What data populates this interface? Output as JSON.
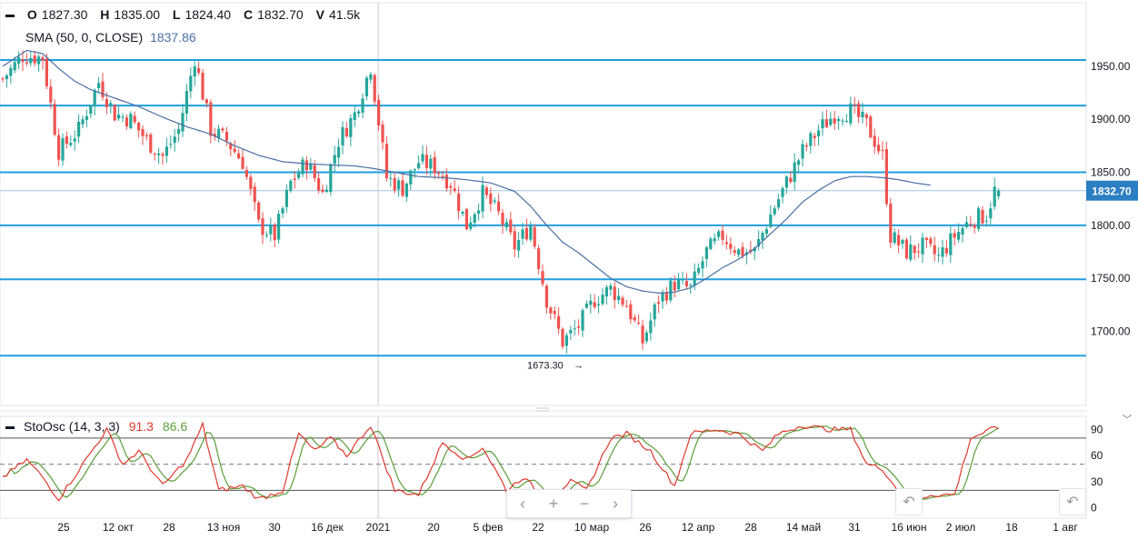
{
  "legend": {
    "o_label": "O",
    "o_value": "1827.30",
    "h_label": "H",
    "h_value": "1835.00",
    "l_label": "L",
    "l_value": "1824.40",
    "c_label": "C",
    "c_value": "1832.70",
    "v_label": "V",
    "v_value": "41.5k",
    "sma_label": "SMA (50, 0, CLOSE)",
    "sma_value": "1837.86",
    "osc_label": "StoOsc (14, 3, 3)",
    "osc_k": "91.3",
    "osc_d": "86.6"
  },
  "colors": {
    "up": "#26a69a",
    "down": "#ef5350",
    "sma": "#4a6fa5",
    "hline": "#1e9fe0",
    "price_badge": "#2b7ec1",
    "k_line": "#e0392d",
    "d_line": "#5a9e3a"
  },
  "nav_buttons": [
    {
      "name": "scroll-left-button",
      "glyph": "‹"
    },
    {
      "name": "zoom-in-button",
      "glyph": "+"
    },
    {
      "name": "zoom-out-button",
      "glyph": "−"
    },
    {
      "name": "scroll-right-button",
      "glyph": "›"
    }
  ],
  "chart_data": [
    {
      "type": "candlestick",
      "title": "",
      "x_ticks": [
        "25",
        "12 окт",
        "28",
        "13 ноя",
        "30",
        "16 дек",
        "2021",
        "20",
        "5 фев",
        "22",
        "10 мар",
        "26",
        "12 апр",
        "28",
        "14 май",
        "31",
        "16 июн",
        "2 июл",
        "18",
        "1 авг"
      ],
      "y_ticks": [
        "1700.00",
        "1750.00",
        "1800.00",
        "1850.00",
        "1900.00",
        "1950.00"
      ],
      "ylim": [
        1630,
        2010
      ],
      "current_price": 1832.7,
      "horizontal_levels": [
        1677,
        1749,
        1800,
        1850,
        1913,
        1956
      ],
      "min_annotation": {
        "value": 1673.3,
        "label": "1673.30"
      },
      "sma_series": [
        {
          "i": 0,
          "v": 1950
        },
        {
          "i": 6,
          "v": 1965
        },
        {
          "i": 10,
          "v": 1962
        },
        {
          "i": 14,
          "v": 1948
        },
        {
          "i": 18,
          "v": 1936
        },
        {
          "i": 22,
          "v": 1928
        },
        {
          "i": 28,
          "v": 1920
        },
        {
          "i": 34,
          "v": 1912
        },
        {
          "i": 40,
          "v": 1902
        },
        {
          "i": 46,
          "v": 1893
        },
        {
          "i": 52,
          "v": 1886
        },
        {
          "i": 58,
          "v": 1875
        },
        {
          "i": 64,
          "v": 1866
        },
        {
          "i": 70,
          "v": 1860
        },
        {
          "i": 76,
          "v": 1858
        },
        {
          "i": 82,
          "v": 1857
        },
        {
          "i": 88,
          "v": 1856
        },
        {
          "i": 92,
          "v": 1854
        },
        {
          "i": 98,
          "v": 1850
        },
        {
          "i": 104,
          "v": 1846
        },
        {
          "i": 110,
          "v": 1845
        },
        {
          "i": 116,
          "v": 1843
        },
        {
          "i": 122,
          "v": 1840
        },
        {
          "i": 128,
          "v": 1832
        },
        {
          "i": 132,
          "v": 1818
        },
        {
          "i": 136,
          "v": 1800
        },
        {
          "i": 140,
          "v": 1784
        },
        {
          "i": 144,
          "v": 1774
        },
        {
          "i": 148,
          "v": 1762
        },
        {
          "i": 152,
          "v": 1750
        },
        {
          "i": 156,
          "v": 1742
        },
        {
          "i": 160,
          "v": 1738
        },
        {
          "i": 164,
          "v": 1736
        },
        {
          "i": 168,
          "v": 1737
        },
        {
          "i": 172,
          "v": 1741
        },
        {
          "i": 176,
          "v": 1750
        },
        {
          "i": 180,
          "v": 1760
        },
        {
          "i": 184,
          "v": 1768
        },
        {
          "i": 188,
          "v": 1778
        },
        {
          "i": 192,
          "v": 1792
        },
        {
          "i": 196,
          "v": 1806
        },
        {
          "i": 200,
          "v": 1822
        },
        {
          "i": 204,
          "v": 1833
        },
        {
          "i": 208,
          "v": 1842
        },
        {
          "i": 212,
          "v": 1846
        },
        {
          "i": 216,
          "v": 1846
        },
        {
          "i": 220,
          "v": 1845
        },
        {
          "i": 224,
          "v": 1843
        },
        {
          "i": 228,
          "v": 1840
        },
        {
          "i": 232,
          "v": 1837.86
        }
      ],
      "price_anchors": [
        {
          "i": 0,
          "v": 1938
        },
        {
          "i": 5,
          "v": 1960
        },
        {
          "i": 10,
          "v": 1958
        },
        {
          "i": 14,
          "v": 1870
        },
        {
          "i": 19,
          "v": 1890
        },
        {
          "i": 24,
          "v": 1935
        },
        {
          "i": 28,
          "v": 1905
        },
        {
          "i": 32,
          "v": 1900
        },
        {
          "i": 36,
          "v": 1880
        },
        {
          "i": 40,
          "v": 1865
        },
        {
          "i": 44,
          "v": 1890
        },
        {
          "i": 48,
          "v": 1958
        },
        {
          "i": 52,
          "v": 1890
        },
        {
          "i": 56,
          "v": 1880
        },
        {
          "i": 60,
          "v": 1860
        },
        {
          "i": 64,
          "v": 1800
        },
        {
          "i": 68,
          "v": 1790
        },
        {
          "i": 72,
          "v": 1840
        },
        {
          "i": 76,
          "v": 1860
        },
        {
          "i": 80,
          "v": 1830
        },
        {
          "i": 84,
          "v": 1880
        },
        {
          "i": 88,
          "v": 1905
        },
        {
          "i": 92,
          "v": 1950
        },
        {
          "i": 96,
          "v": 1845
        },
        {
          "i": 100,
          "v": 1835
        },
        {
          "i": 104,
          "v": 1860
        },
        {
          "i": 108,
          "v": 1855
        },
        {
          "i": 112,
          "v": 1840
        },
        {
          "i": 116,
          "v": 1800
        },
        {
          "i": 120,
          "v": 1830
        },
        {
          "i": 124,
          "v": 1810
        },
        {
          "i": 128,
          "v": 1780
        },
        {
          "i": 132,
          "v": 1800
        },
        {
          "i": 136,
          "v": 1730
        },
        {
          "i": 140,
          "v": 1690
        },
        {
          "i": 144,
          "v": 1705
        },
        {
          "i": 148,
          "v": 1730
        },
        {
          "i": 152,
          "v": 1740
        },
        {
          "i": 156,
          "v": 1725
        },
        {
          "i": 160,
          "v": 1690
        },
        {
          "i": 164,
          "v": 1730
        },
        {
          "i": 168,
          "v": 1745
        },
        {
          "i": 172,
          "v": 1740
        },
        {
          "i": 176,
          "v": 1775
        },
        {
          "i": 180,
          "v": 1790
        },
        {
          "i": 184,
          "v": 1775
        },
        {
          "i": 188,
          "v": 1775
        },
        {
          "i": 192,
          "v": 1810
        },
        {
          "i": 196,
          "v": 1840
        },
        {
          "i": 200,
          "v": 1870
        },
        {
          "i": 204,
          "v": 1890
        },
        {
          "i": 208,
          "v": 1905
        },
        {
          "i": 212,
          "v": 1908
        },
        {
          "i": 216,
          "v": 1895
        },
        {
          "i": 220,
          "v": 1865
        },
        {
          "i": 222,
          "v": 1790
        },
        {
          "i": 226,
          "v": 1775
        },
        {
          "i": 230,
          "v": 1780
        },
        {
          "i": 234,
          "v": 1770
        },
        {
          "i": 238,
          "v": 1790
        },
        {
          "i": 242,
          "v": 1805
        },
        {
          "i": 246,
          "v": 1810
        },
        {
          "i": 248,
          "v": 1832.7
        }
      ]
    },
    {
      "type": "line",
      "title": "",
      "y_ticks": [
        "0",
        "30",
        "60",
        "90"
      ],
      "ylim": [
        -12,
        105
      ],
      "levels": [
        20,
        50,
        80
      ],
      "k_anchors": [
        {
          "i": 0,
          "v": 35
        },
        {
          "i": 6,
          "v": 55
        },
        {
          "i": 10,
          "v": 35
        },
        {
          "i": 14,
          "v": 10
        },
        {
          "i": 20,
          "v": 50
        },
        {
          "i": 26,
          "v": 90
        },
        {
          "i": 30,
          "v": 50
        },
        {
          "i": 34,
          "v": 65
        },
        {
          "i": 40,
          "v": 25
        },
        {
          "i": 46,
          "v": 55
        },
        {
          "i": 50,
          "v": 95
        },
        {
          "i": 54,
          "v": 20
        },
        {
          "i": 60,
          "v": 25
        },
        {
          "i": 64,
          "v": 10
        },
        {
          "i": 70,
          "v": 20
        },
        {
          "i": 74,
          "v": 85
        },
        {
          "i": 78,
          "v": 65
        },
        {
          "i": 82,
          "v": 80
        },
        {
          "i": 86,
          "v": 60
        },
        {
          "i": 92,
          "v": 95
        },
        {
          "i": 98,
          "v": 20
        },
        {
          "i": 104,
          "v": 15
        },
        {
          "i": 110,
          "v": 75
        },
        {
          "i": 116,
          "v": 55
        },
        {
          "i": 120,
          "v": 70
        },
        {
          "i": 126,
          "v": 20
        },
        {
          "i": 130,
          "v": 35
        },
        {
          "i": 136,
          "v": 10
        },
        {
          "i": 142,
          "v": 30
        },
        {
          "i": 146,
          "v": 20
        },
        {
          "i": 152,
          "v": 80
        },
        {
          "i": 156,
          "v": 85
        },
        {
          "i": 162,
          "v": 65
        },
        {
          "i": 168,
          "v": 25
        },
        {
          "i": 172,
          "v": 85
        },
        {
          "i": 178,
          "v": 90
        },
        {
          "i": 184,
          "v": 85
        },
        {
          "i": 190,
          "v": 65
        },
        {
          "i": 194,
          "v": 85
        },
        {
          "i": 200,
          "v": 95
        },
        {
          "i": 206,
          "v": 90
        },
        {
          "i": 212,
          "v": 90
        },
        {
          "i": 216,
          "v": 50
        },
        {
          "i": 220,
          "v": 45
        },
        {
          "i": 226,
          "v": 5
        },
        {
          "i": 232,
          "v": 15
        },
        {
          "i": 238,
          "v": 15
        },
        {
          "i": 242,
          "v": 80
        },
        {
          "i": 248,
          "v": 91.3
        }
      ]
    }
  ]
}
